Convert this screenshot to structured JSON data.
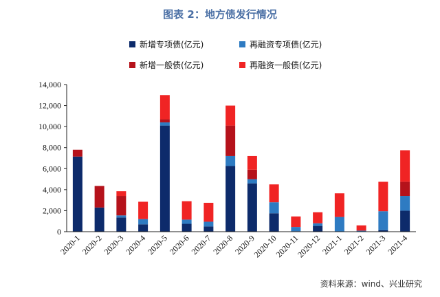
{
  "page": {
    "title": "图表 2：地方债发行情况",
    "source": "资料来源：wind、兴业研究"
  },
  "chart_data": {
    "type": "bar",
    "stacked": true,
    "title": "图表 2：地方债发行情况",
    "categories": [
      "2020-1",
      "2020-2",
      "2020-3",
      "2020-4",
      "2020-5",
      "2020-6",
      "2020-7",
      "2020-8",
      "2020-9",
      "2020-10",
      "2020-11",
      "2020-12",
      "2021-1",
      "2021-2",
      "2021-3",
      "2021-4"
    ],
    "series": [
      {
        "name": "新增专项债(亿元)",
        "color": "#0d2b6b",
        "values": [
          7150,
          2300,
          1350,
          700,
          10100,
          750,
          500,
          6250,
          4600,
          1750,
          50,
          550,
          0,
          0,
          150,
          2000
        ]
      },
      {
        "name": "再融资专项债(亿元)",
        "color": "#2e7bc2",
        "values": [
          0,
          0,
          200,
          500,
          300,
          400,
          450,
          950,
          400,
          1050,
          400,
          250,
          1400,
          100,
          1800,
          1400
        ]
      },
      {
        "name": "新增一般债(亿元)",
        "color": "#b5121b",
        "values": [
          650,
          2050,
          1850,
          0,
          300,
          0,
          0,
          2900,
          900,
          0,
          0,
          0,
          0,
          0,
          0,
          1350
        ]
      },
      {
        "name": "再融资一般债(亿元)",
        "color": "#f02424",
        "values": [
          0,
          0,
          450,
          1650,
          2300,
          1750,
          1800,
          1900,
          1300,
          1700,
          1000,
          1050,
          2250,
          500,
          2800,
          3000
        ]
      }
    ],
    "ylim": [
      0,
      14000
    ],
    "yticks": [
      0,
      2000,
      4000,
      6000,
      8000,
      10000,
      12000,
      14000
    ],
    "ytick_labels": [
      "0",
      "2,000",
      "4,000",
      "6,000",
      "8,000",
      "10,000",
      "12,000",
      "14,000"
    ],
    "xlabel": "",
    "ylabel": "",
    "grid": false,
    "legend_position": "top-center"
  }
}
